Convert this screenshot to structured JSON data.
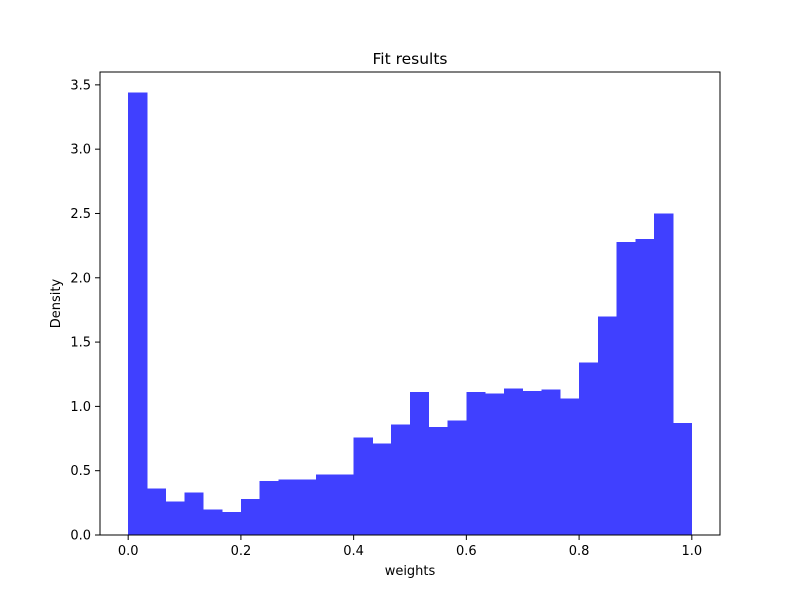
{
  "chart_data": {
    "type": "bar",
    "title": "Fit results",
    "xlabel": "weights",
    "ylabel": "Density",
    "xlim": [
      -0.05,
      1.05
    ],
    "ylim": [
      0,
      3.6
    ],
    "xticks": [
      0.0,
      0.2,
      0.4,
      0.6,
      0.8,
      1.0
    ],
    "xtick_labels": [
      "0.0",
      "0.2",
      "0.4",
      "0.6",
      "0.8",
      "1.0"
    ],
    "yticks": [
      0.0,
      0.5,
      1.0,
      1.5,
      2.0,
      2.5,
      3.0,
      3.5
    ],
    "ytick_labels": [
      "0.0",
      "0.5",
      "1.0",
      "1.5",
      "2.0",
      "2.5",
      "3.0",
      "3.5"
    ],
    "grid": false,
    "bar_color": "#4040ff",
    "bin_edges": [
      0.0,
      0.0333,
      0.0667,
      0.1,
      0.1333,
      0.1667,
      0.2,
      0.2333,
      0.2667,
      0.3,
      0.3333,
      0.3667,
      0.4,
      0.4333,
      0.4667,
      0.5,
      0.5333,
      0.5667,
      0.6,
      0.6333,
      0.6667,
      0.7,
      0.7333,
      0.7667,
      0.8,
      0.8333,
      0.8667,
      0.9,
      0.9333,
      0.9667,
      1.0
    ],
    "values": [
      3.44,
      0.36,
      0.26,
      0.33,
      0.2,
      0.18,
      0.28,
      0.42,
      0.43,
      0.43,
      0.47,
      0.47,
      0.76,
      0.71,
      0.86,
      1.11,
      0.84,
      0.89,
      1.11,
      1.1,
      1.14,
      1.12,
      1.13,
      1.06,
      1.34,
      1.7,
      2.28,
      2.3,
      2.5,
      0.87
    ]
  }
}
